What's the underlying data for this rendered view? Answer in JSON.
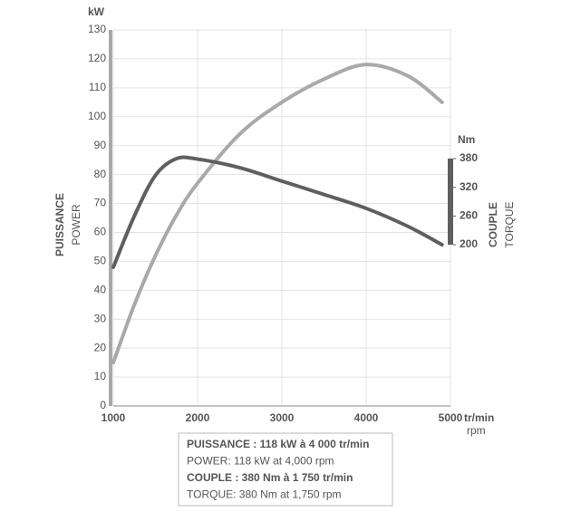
{
  "chart_data": {
    "type": "line",
    "x_label": "tr/min",
    "x_label_sub": "rpm",
    "y_unit": "kW",
    "y2_unit": "Nm",
    "y_label": "PUISSANCE",
    "y_label_sub": "POWER",
    "y2_label": "COUPLE",
    "y2_label_sub": "TORQUE",
    "x": [
      1000,
      1250,
      1500,
      1750,
      2000,
      2500,
      3000,
      3500,
      4000,
      4500,
      4900
    ],
    "xlim": [
      1000,
      5000
    ],
    "xticks": [
      1000,
      2000,
      3000,
      4000,
      5000
    ],
    "ylim": [
      0,
      130
    ],
    "yticks": [
      0,
      10,
      20,
      30,
      40,
      50,
      60,
      70,
      80,
      90,
      100,
      110,
      120,
      130
    ],
    "y2lim": [
      -137,
      649
    ],
    "y2ticks": [
      380,
      320,
      260,
      200
    ],
    "grid": true,
    "series": [
      {
        "name": "PUISSANCE",
        "color": "#a9a9ab",
        "values": [
          15,
          35,
          52,
          66,
          77,
          94,
          105,
          113,
          118,
          114,
          105
        ]
      },
      {
        "name": "COUPLE",
        "color": "#5f5f61",
        "axis": "y2",
        "values": [
          153,
          260,
          345,
          380,
          379,
          361,
          333,
          305,
          276,
          238,
          200
        ]
      }
    ],
    "annotations": [
      "PUISSANCE : 118 kW à 4 000 tr/min",
      "POWER: 118 kW at 4,000 rpm",
      "COUPLE : 380 Nm à 1 750 tr/min",
      "TORQUE: 380 Nm at 1,750 rpm"
    ]
  }
}
